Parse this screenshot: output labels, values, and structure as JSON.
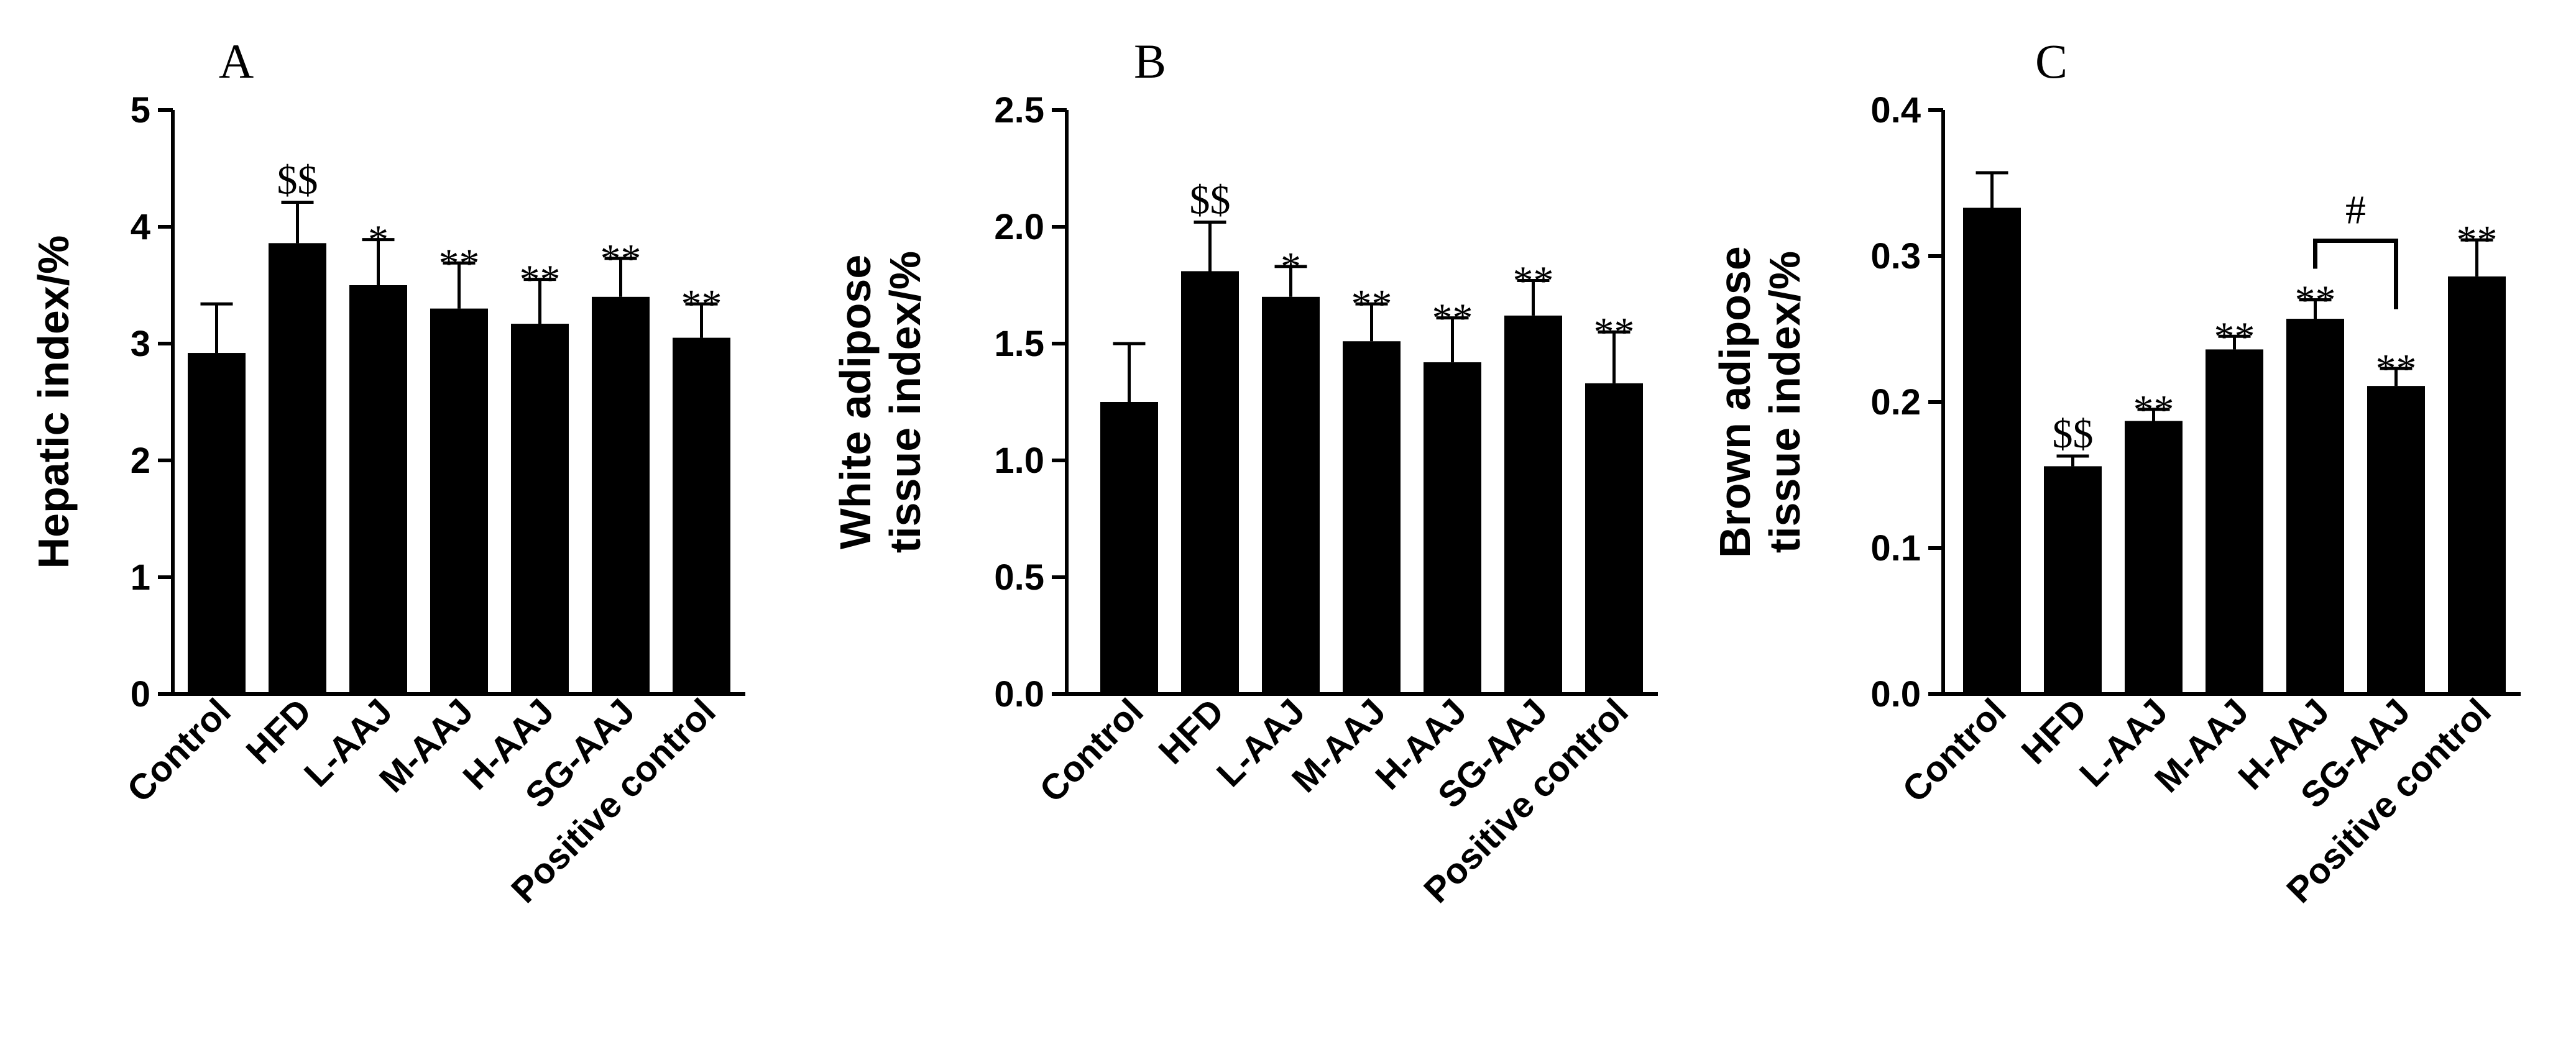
{
  "chart_data": [
    {
      "type": "bar",
      "panel_label": "A",
      "ylabel": "Hepatic index/%",
      "ylim": [
        0,
        5
      ],
      "yticks": [
        "0",
        "1",
        "2",
        "3",
        "4",
        "5"
      ],
      "categories": [
        "Control",
        "HFD",
        "L-AAJ",
        "M-AAJ",
        "H-AAJ",
        "SG-AAJ",
        "Positive control"
      ],
      "values": [
        2.92,
        3.86,
        3.5,
        3.3,
        3.17,
        3.4,
        3.05
      ],
      "errors": [
        0.42,
        0.35,
        0.39,
        0.39,
        0.38,
        0.33,
        0.29
      ],
      "annotations": [
        "",
        "$$",
        "*",
        "**",
        "**",
        "**",
        "**"
      ],
      "brackets": []
    },
    {
      "type": "bar",
      "panel_label": "B",
      "ylabel": "White adipose tissue index/%",
      "ylabel_lines": [
        "White adipose",
        "tissue index/%"
      ],
      "ylim": [
        0,
        2.5
      ],
      "yticks": [
        "0.0",
        "0.5",
        "1.0",
        "1.5",
        "2.0",
        "2.5"
      ],
      "categories": [
        "Control",
        "HFD",
        "L-AAJ",
        "M-AAJ",
        "H-AAJ",
        "SG-AAJ",
        "Positive control"
      ],
      "values": [
        1.25,
        1.81,
        1.7,
        1.51,
        1.42,
        1.62,
        1.33
      ],
      "errors": [
        0.25,
        0.21,
        0.13,
        0.16,
        0.19,
        0.15,
        0.22
      ],
      "annotations": [
        "",
        "$$",
        "*",
        "**",
        "**",
        "**",
        "**"
      ],
      "brackets": []
    },
    {
      "type": "bar",
      "panel_label": "C",
      "ylabel": "Brown adipose tissue index/%",
      "ylabel_lines": [
        "Brown adipose",
        "tissue index/%"
      ],
      "ylim": [
        0,
        0.4
      ],
      "yticks": [
        "0.0",
        "0.1",
        "0.2",
        "0.3",
        "0.4"
      ],
      "categories": [
        "Control",
        "HFD",
        "L-AAJ",
        "M-AAJ",
        "H-AAJ",
        "SG-AAJ",
        "Positive control"
      ],
      "values": [
        0.333,
        0.156,
        0.187,
        0.236,
        0.257,
        0.211,
        0.286
      ],
      "errors": [
        0.024,
        0.007,
        0.008,
        0.009,
        0.013,
        0.012,
        0.025
      ],
      "annotations": [
        "",
        "$$",
        "**",
        "**",
        "**",
        "**",
        "**"
      ],
      "brackets": [
        {
          "from": 4,
          "to": 5,
          "label": "#"
        }
      ]
    }
  ]
}
